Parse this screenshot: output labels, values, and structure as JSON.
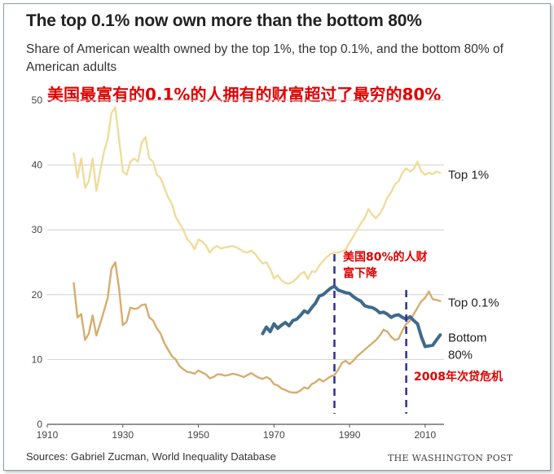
{
  "title": "The top 0.1% now own more than the bottom 80%",
  "subtitle": "Share of American wealth owned by the top 1%, the top 0.1%, and the bottom 80% of American adults",
  "cn_title": "美国最富有的0.1%的人拥有的财富超过了最穷的80%",
  "source": "Sources: Gabriel Zucman, World Inequality Database",
  "credit": "THE WASHINGTON POST",
  "annotations": {
    "decline": [
      "美国80%的人财",
      "富下降"
    ],
    "crisis": "2008年次贷危机"
  },
  "colors": {
    "top1": "#f0dc9a",
    "top01": "#d6ad6e",
    "bottom80": "#3f6a8c",
    "annotation": "#e00000",
    "marker": "#2e2e9e"
  },
  "chart_data": {
    "type": "line",
    "title": "The top 0.1% now own more than the bottom 80%",
    "subtitle": "Share of American wealth owned by the top 1%, the top 0.1%, and the bottom 80% of American adults",
    "xlabel": "",
    "ylabel": "",
    "xlim": [
      1910,
      2015
    ],
    "ylim": [
      0,
      50
    ],
    "x_ticks": [
      1910,
      1930,
      1950,
      1970,
      1990,
      2010
    ],
    "y_ticks": [
      0,
      10,
      20,
      30,
      40,
      50
    ],
    "grid": true,
    "series": [
      {
        "name": "Top 1%",
        "x": [
          1917,
          1918,
          1919,
          1920,
          1921,
          1922,
          1923,
          1924,
          1925,
          1926,
          1927,
          1928,
          1929,
          1930,
          1931,
          1932,
          1933,
          1934,
          1935,
          1936,
          1937,
          1938,
          1939,
          1940,
          1941,
          1942,
          1943,
          1944,
          1945,
          1946,
          1947,
          1948,
          1949,
          1950,
          1951,
          1952,
          1953,
          1954,
          1955,
          1956,
          1957,
          1958,
          1959,
          1960,
          1961,
          1962,
          1963,
          1964,
          1965,
          1966,
          1967,
          1968,
          1969,
          1970,
          1971,
          1972,
          1973,
          1974,
          1975,
          1976,
          1977,
          1978,
          1979,
          1980,
          1981,
          1982,
          1983,
          1984,
          1985,
          1986,
          1987,
          1988,
          1989,
          1990,
          1991,
          1992,
          1993,
          1994,
          1995,
          1996,
          1997,
          1998,
          1999,
          2000,
          2001,
          2002,
          2003,
          2004,
          2005,
          2006,
          2007,
          2008,
          2009,
          2010,
          2011,
          2012,
          2013,
          2014
        ],
        "values": [
          41.8,
          38,
          41,
          36.5,
          37.5,
          41,
          36,
          39,
          42,
          44,
          48,
          48.9,
          44,
          39,
          38.5,
          40.5,
          41,
          40.5,
          43.5,
          44.3,
          41,
          40.5,
          38.5,
          38,
          36.5,
          35,
          34,
          32,
          31,
          30,
          28.6,
          28,
          27,
          28.5,
          28.2,
          27.6,
          26.5,
          27.2,
          27.5,
          27.1,
          27.3,
          27.4,
          27.5,
          27.3,
          27,
          26.6,
          26.5,
          26.8,
          26.3,
          25.5,
          24.8,
          25,
          24,
          22.5,
          23,
          22.2,
          21.8,
          21.7,
          22,
          22.5,
          23.2,
          23.5,
          22.4,
          23.6,
          23.5,
          24.5,
          25.2,
          25.8,
          26.3,
          26.5,
          26.5,
          26.7,
          27,
          28,
          29,
          30,
          31,
          31.8,
          33.2,
          32.3,
          31.8,
          32.5,
          33.5,
          35,
          35.8,
          37,
          37.5,
          38.8,
          39.5,
          39,
          39.4,
          40.5,
          39,
          38.5,
          38.8,
          38.6,
          39,
          38.8
        ]
      },
      {
        "name": "Top 0.1%",
        "x": [
          1917,
          1918,
          1919,
          1920,
          1921,
          1922,
          1923,
          1924,
          1925,
          1926,
          1927,
          1928,
          1929,
          1930,
          1931,
          1932,
          1933,
          1934,
          1935,
          1936,
          1937,
          1938,
          1939,
          1940,
          1941,
          1942,
          1943,
          1944,
          1945,
          1946,
          1947,
          1948,
          1949,
          1950,
          1951,
          1952,
          1953,
          1954,
          1955,
          1956,
          1957,
          1958,
          1959,
          1960,
          1961,
          1962,
          1963,
          1964,
          1965,
          1966,
          1967,
          1968,
          1969,
          1970,
          1971,
          1972,
          1973,
          1974,
          1975,
          1976,
          1977,
          1978,
          1979,
          1980,
          1981,
          1982,
          1983,
          1984,
          1985,
          1986,
          1987,
          1988,
          1989,
          1990,
          1991,
          1992,
          1993,
          1994,
          1995,
          1996,
          1997,
          1998,
          1999,
          2000,
          2001,
          2002,
          2003,
          2004,
          2005,
          2006,
          2007,
          2008,
          2009,
          2010,
          2011,
          2012,
          2013,
          2014
        ],
        "values": [
          21.8,
          16.5,
          17,
          13,
          14,
          16.8,
          13.7,
          15.5,
          17.5,
          19.5,
          24,
          25,
          21,
          15.3,
          15.8,
          18,
          17.8,
          17.9,
          18.4,
          18.5,
          16.5,
          16,
          14.8,
          14,
          12.5,
          11.5,
          10.5,
          10,
          9,
          8.5,
          8.1,
          8,
          7.8,
          8.3,
          8,
          7.7,
          7.1,
          7.3,
          7.7,
          7.7,
          7.5,
          7.6,
          7.8,
          7.7,
          7.5,
          7.3,
          7.6,
          7.9,
          7.5,
          7.2,
          7,
          7.3,
          7,
          6.2,
          6,
          5.5,
          5.3,
          5,
          4.9,
          4.9,
          5.2,
          5.7,
          5.5,
          6.2,
          6.5,
          7,
          6.6,
          7,
          7.4,
          7.6,
          8.4,
          9.5,
          9.8,
          9.3,
          9.8,
          10.5,
          11,
          11.5,
          12,
          12.5,
          13,
          13.7,
          14.6,
          14.3,
          13.5,
          13,
          13.2,
          14.5,
          15.5,
          16,
          17,
          18,
          19,
          19.5,
          20.5,
          19.3,
          19.2,
          19
        ]
      },
      {
        "name": "Bottom 80%",
        "x": [
          1967,
          1968,
          1969,
          1970,
          1971,
          1972,
          1973,
          1974,
          1975,
          1976,
          1977,
          1978,
          1979,
          1980,
          1981,
          1982,
          1983,
          1984,
          1985,
          1986,
          1987,
          1988,
          1989,
          1990,
          1991,
          1992,
          1993,
          1994,
          1995,
          1996,
          1997,
          1998,
          1999,
          2000,
          2001,
          2002,
          2003,
          2004,
          2005,
          2006,
          2007,
          2008,
          2009,
          2010,
          2011,
          2012,
          2013,
          2014
        ],
        "values": [
          14,
          15,
          14.3,
          15.5,
          14.8,
          15.3,
          15.7,
          15.2,
          16,
          16.2,
          16.8,
          17.5,
          17.2,
          18,
          18.7,
          19.8,
          20,
          20.5,
          21,
          21.3,
          20.7,
          20.5,
          20.3,
          20.2,
          19.7,
          19.3,
          19,
          18.3,
          18.1,
          18,
          17.7,
          17.2,
          17.3,
          17,
          16.5,
          16.8,
          16.9,
          16.5,
          16.2,
          16.6,
          16,
          15.5,
          13.5,
          12,
          12.1,
          12.2,
          13,
          13.8
        ]
      }
    ],
    "series_labels": [
      {
        "series": 0,
        "text": [
          "Top 1%"
        ],
        "y": 38.5
      },
      {
        "series": 1,
        "text": [
          "Top 0.1%"
        ],
        "y": 18.8
      },
      {
        "series": 2,
        "text": [
          "Bottom",
          "80%"
        ],
        "y": 13.4
      }
    ],
    "vertical_markers": [
      {
        "x": 1986,
        "label": "美国80%的人财富下降"
      },
      {
        "x": 2005,
        "label": "2008年次贷危机"
      }
    ]
  }
}
